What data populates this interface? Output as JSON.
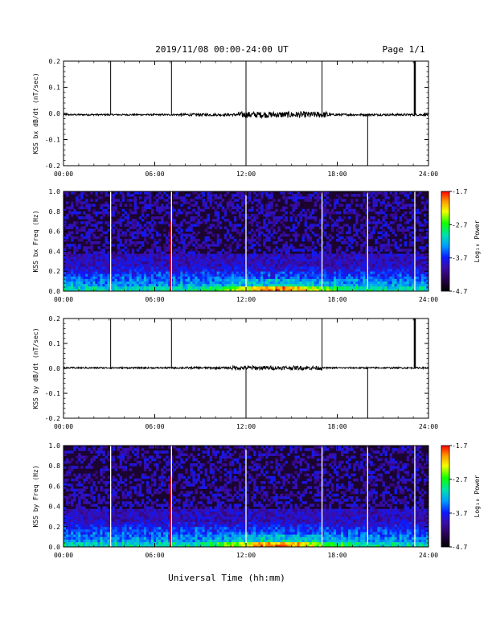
{
  "header": {
    "title": "2019/11/08  00:00-24:00 UT",
    "page": "Page 1/1"
  },
  "xaxis": {
    "title": "Universal Time (hh:mm)",
    "ticks": [
      "00:00",
      "06:00",
      "12:00",
      "18:00",
      "24:00"
    ]
  },
  "colorbar": {
    "label": "Log₁₀ Power",
    "ticks": [
      "-1.7",
      "-2.7",
      "-3.7",
      "-4.7"
    ]
  },
  "chart_data": [
    {
      "type": "line",
      "ylabel": "KSS bx dB/dt (nT/sec)",
      "xlim": [
        0,
        24
      ],
      "ylim": [
        -0.2,
        0.2
      ],
      "yticks": [
        "0.2",
        "0.1",
        "0.0",
        "-0.1",
        "-0.2"
      ],
      "baseline": -0.005,
      "noise_intervals": [
        {
          "x": [
            0,
            7.5
          ],
          "amplitude": 0.003
        },
        {
          "x": [
            7.5,
            11.5
          ],
          "amplitude": 0.005
        },
        {
          "x": [
            11.5,
            17.5
          ],
          "amplitude": 0.012
        },
        {
          "x": [
            17.5,
            24
          ],
          "amplitude": 0.004
        }
      ],
      "spikes": [
        {
          "x": 3.1,
          "y": [
            -0.005,
            0.2
          ]
        },
        {
          "x": 7.1,
          "y": [
            -0.005,
            0.2
          ]
        },
        {
          "x": 12.0,
          "y": [
            -0.2,
            0.2
          ]
        },
        {
          "x": 17.0,
          "y": [
            -0.005,
            0.2
          ]
        },
        {
          "x": 20.0,
          "y": [
            -0.2,
            -0.005
          ]
        },
        {
          "x": 23.1,
          "y": [
            -0.005,
            0.2
          ]
        }
      ]
    },
    {
      "type": "heatmap",
      "ylabel": "KSS bx Freq (Hz)",
      "xlim": [
        0,
        24
      ],
      "ylim": [
        0,
        1.0
      ],
      "yticks": [
        "1.0",
        "0.8",
        "0.6",
        "0.4",
        "0.2",
        "0.0"
      ],
      "zlim": [
        -4.7,
        -1.7
      ],
      "gap_lines_x": [
        3.1,
        7.1,
        12.0,
        17.0,
        20.0,
        23.1
      ],
      "red_marker": {
        "x": 7.05,
        "y": [
          0.0,
          0.7
        ],
        "value": -1.7
      }
    },
    {
      "type": "line",
      "ylabel": "KSS by dB/dt (nT/sec)",
      "xlim": [
        0,
        24
      ],
      "ylim": [
        -0.2,
        0.2
      ],
      "yticks": [
        "0.2",
        "0.1",
        "0.0",
        "-0.1",
        "-0.2"
      ],
      "baseline": 0.002,
      "noise_intervals": [
        {
          "x": [
            0,
            7.5
          ],
          "amplitude": 0.003
        },
        {
          "x": [
            7.5,
            11.0
          ],
          "amplitude": 0.004
        },
        {
          "x": [
            11.0,
            17.0
          ],
          "amplitude": 0.008
        },
        {
          "x": [
            17.0,
            24
          ],
          "amplitude": 0.003
        }
      ],
      "spikes": [
        {
          "x": 3.1,
          "y": [
            0.002,
            0.2
          ]
        },
        {
          "x": 7.1,
          "y": [
            0.002,
            0.2
          ]
        },
        {
          "x": 12.0,
          "y": [
            -0.2,
            0.002
          ]
        },
        {
          "x": 17.0,
          "y": [
            0.002,
            0.2
          ]
        },
        {
          "x": 20.0,
          "y": [
            -0.2,
            0.002
          ]
        },
        {
          "x": 23.1,
          "y": [
            0.002,
            0.2
          ]
        }
      ]
    },
    {
      "type": "heatmap",
      "ylabel": "KSS by Freq (Hz)",
      "xlim": [
        0,
        24
      ],
      "ylim": [
        0,
        1.0
      ],
      "yticks": [
        "1.0",
        "0.8",
        "0.6",
        "0.4",
        "0.2",
        "0.0"
      ],
      "zlim": [
        -4.7,
        -1.7
      ],
      "gap_lines_x": [
        3.1,
        7.1,
        12.0,
        17.0,
        20.0,
        23.1
      ],
      "red_marker": {
        "x": 7.05,
        "y": [
          0.0,
          0.7
        ],
        "value": -1.7
      }
    }
  ]
}
